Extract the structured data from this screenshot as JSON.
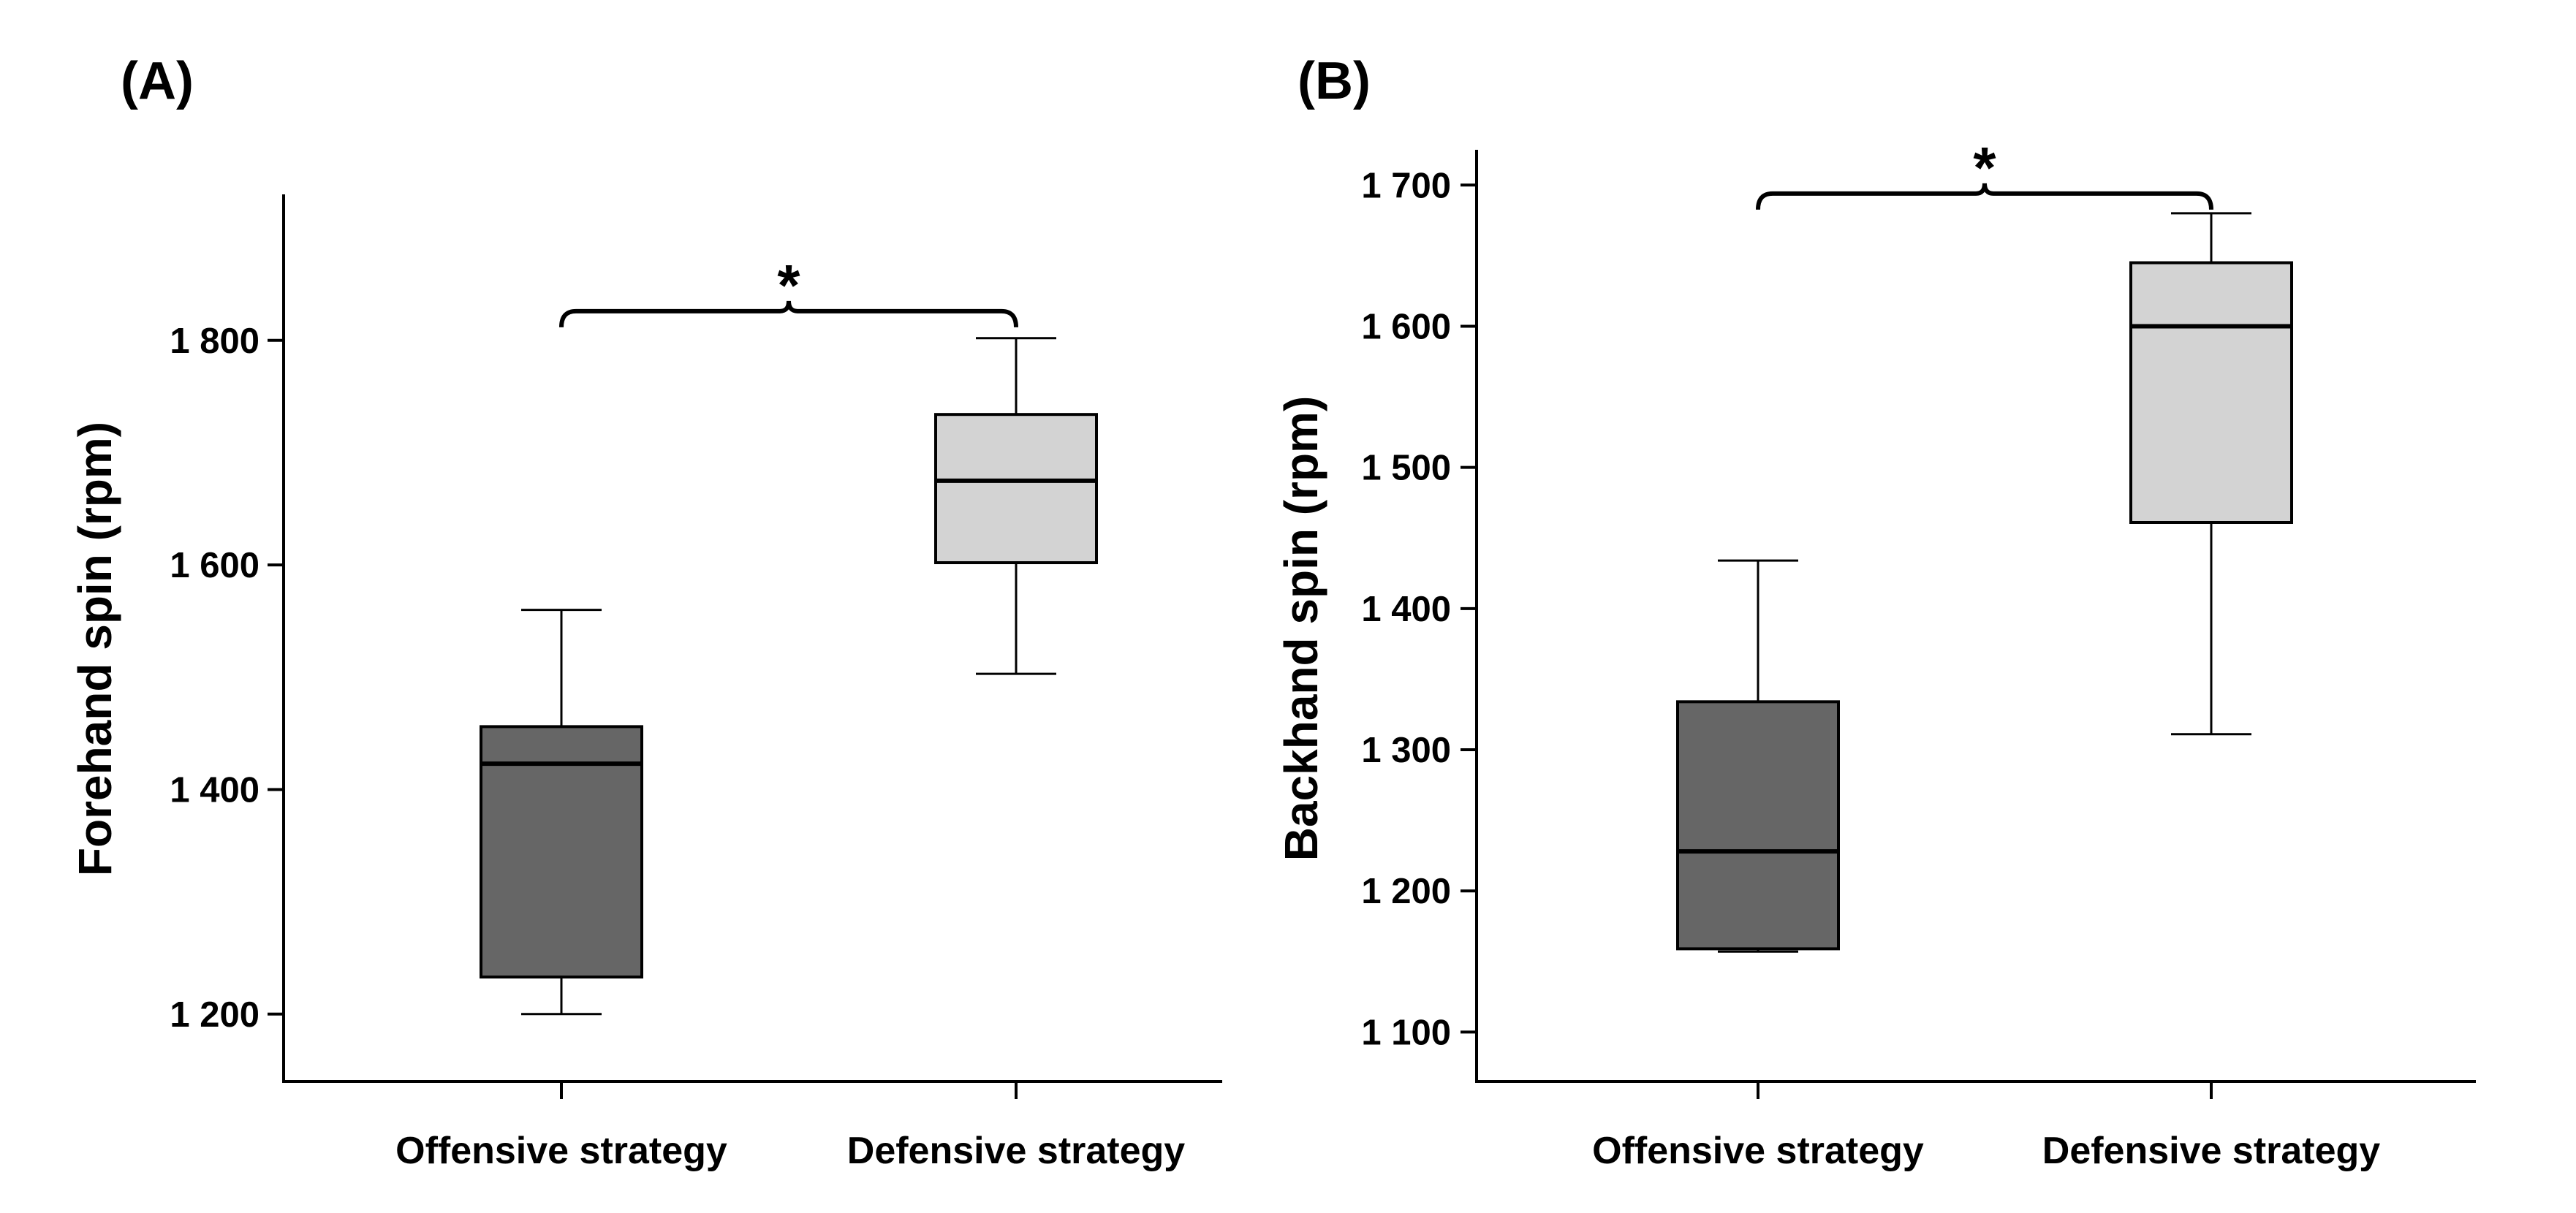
{
  "chart_data": [
    {
      "type": "boxplot",
      "panel_label": "(A)",
      "ylabel": "Forehand spin (rpm)",
      "ylim": [
        1140,
        1930
      ],
      "yticks": [
        1200,
        1400,
        1600,
        1800
      ],
      "ytick_labels": [
        "1 200",
        "1 400",
        "1 600",
        "1 800"
      ],
      "categories": [
        "Offensive strategy",
        "Defensive strategy"
      ],
      "boxes": [
        {
          "name": "Offensive strategy",
          "min": 1200,
          "q1": 1233,
          "median": 1423,
          "q3": 1456,
          "max": 1560,
          "color": "#666666"
        },
        {
          "name": "Defensive strategy",
          "min": 1503,
          "q1": 1602,
          "median": 1675,
          "q3": 1734,
          "max": 1802,
          "color": "#d3d3d3"
        }
      ],
      "significance": {
        "mark": "*",
        "level": 1826,
        "from": 0,
        "to": 1
      }
    },
    {
      "type": "boxplot",
      "panel_label": "(B)",
      "ylabel": "Backhand spin (rpm)",
      "ylim": [
        1065,
        1725
      ],
      "yticks": [
        1100,
        1200,
        1300,
        1400,
        1500,
        1600,
        1700
      ],
      "ytick_labels": [
        "1 100",
        "1 200",
        "1 300",
        "1 400",
        "1 500",
        "1 600",
        "1 700"
      ],
      "categories": [
        "Offensive strategy",
        "Defensive strategy"
      ],
      "boxes": [
        {
          "name": "Offensive strategy",
          "min": 1157,
          "q1": 1159,
          "median": 1228,
          "q3": 1334,
          "max": 1434,
          "color": "#666666"
        },
        {
          "name": "Defensive strategy",
          "min": 1311,
          "q1": 1461,
          "median": 1600,
          "q3": 1645,
          "max": 1680,
          "color": "#d3d3d3"
        }
      ],
      "significance": {
        "mark": "*",
        "level": 1694,
        "from": 0,
        "to": 1
      }
    }
  ]
}
